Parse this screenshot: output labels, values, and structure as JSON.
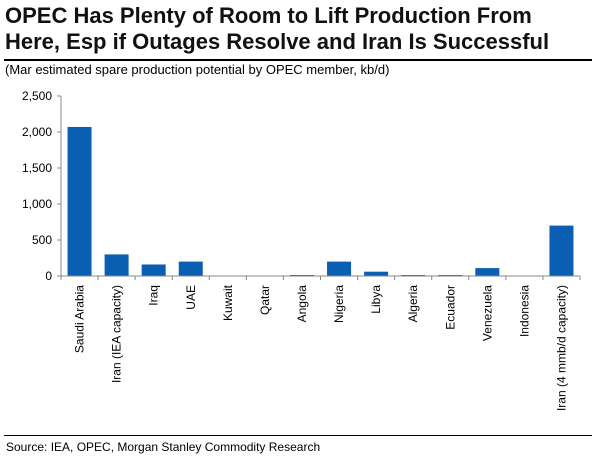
{
  "header": {
    "title_line1": "OPEC Has Plenty of Room to Lift Production From",
    "title_line2": "Here, Esp if Outages Resolve and Iran Is Successful",
    "subtitle": "(Mar estimated spare production potential by OPEC member, kb/d)"
  },
  "footer": {
    "source": "Source: IEA, OPEC, Morgan Stanley Commodity Research"
  },
  "chart_data": {
    "type": "bar",
    "title": "OPEC Has Plenty of Room to Lift Production From Here, Esp if Outages Resolve and Iran Is Successful",
    "subtitle": "(Mar estimated spare production potential by OPEC member, kb/d)",
    "categories": [
      "Saudi Arabia",
      "Iran (IEA capacity)",
      "Iraq",
      "UAE",
      "Kuwait",
      "Qatar",
      "Angola",
      "Nigeria",
      "Libya",
      "Algeria",
      "Ecuador",
      "Venezuela",
      "Indonesia",
      "Iran (4 mmb/d capacity)"
    ],
    "values": [
      2070,
      300,
      160,
      200,
      0,
      0,
      10,
      200,
      60,
      5,
      5,
      110,
      0,
      700
    ],
    "yticks": [
      "0",
      "500",
      "1,000",
      "1,500",
      "2,000",
      "2,500"
    ],
    "ylim": [
      0,
      2500
    ],
    "xlabel": "",
    "ylabel": "",
    "grid": false,
    "legend": "none",
    "bar_color": "#0b5fb3"
  }
}
